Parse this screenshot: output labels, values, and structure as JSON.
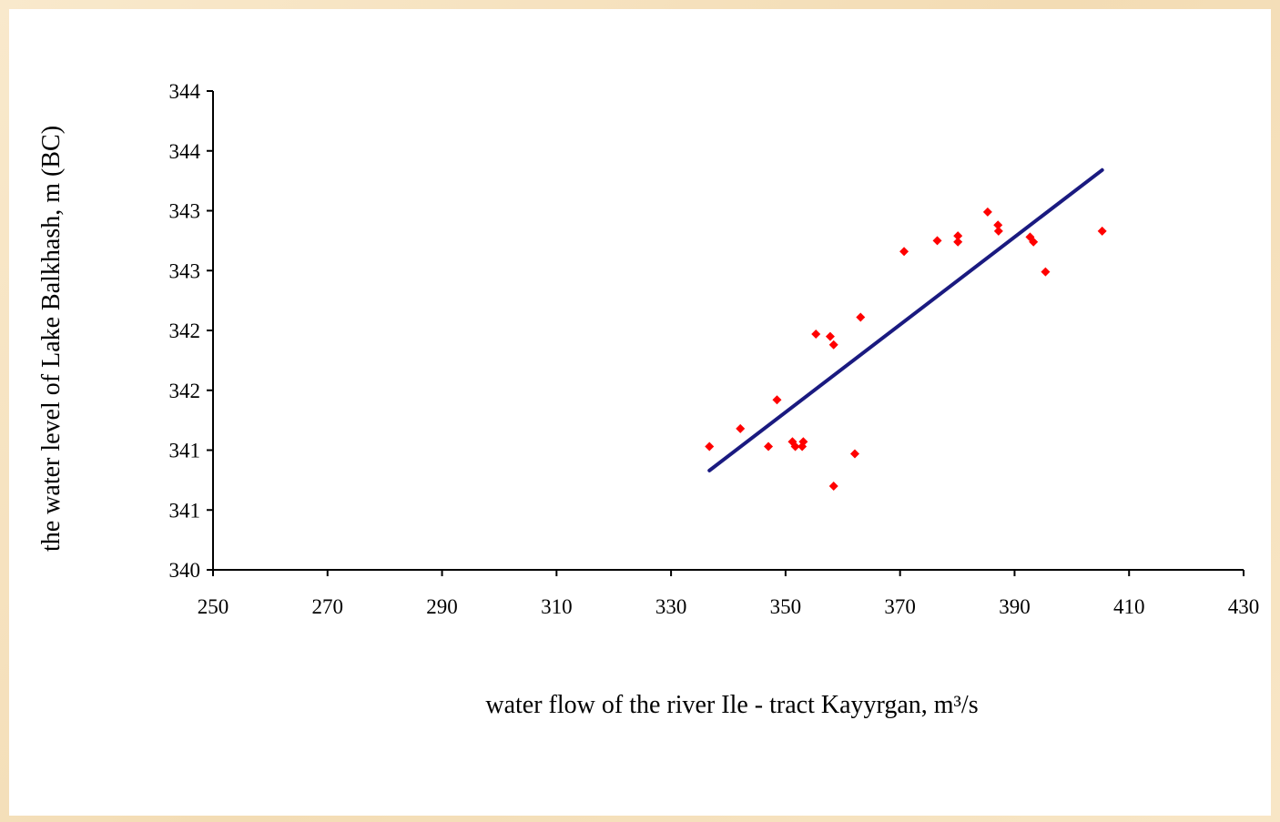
{
  "chart_data": {
    "type": "scatter",
    "title": "",
    "xlabel": "water flow of the river Ile - tract Kayyrgan, m³/s",
    "ylabel": "the water level of Lake Balkhash, m (BC)",
    "xlim": [
      250,
      430
    ],
    "ylim": [
      340,
      344
    ],
    "x_ticks": [
      250,
      270,
      290,
      310,
      330,
      350,
      370,
      390,
      410,
      430
    ],
    "y_ticks": [
      {
        "value": 340.0,
        "label": "340"
      },
      {
        "value": 340.5,
        "label": "341"
      },
      {
        "value": 341.0,
        "label": "341"
      },
      {
        "value": 341.5,
        "label": "342"
      },
      {
        "value": 342.0,
        "label": "342"
      },
      {
        "value": 342.5,
        "label": "343"
      },
      {
        "value": 343.0,
        "label": "343"
      },
      {
        "value": 343.5,
        "label": "344"
      },
      {
        "value": 344.0,
        "label": "344"
      }
    ],
    "grid": false,
    "series": [
      {
        "marker": "diamond",
        "color": "#ff0000",
        "points": [
          [
            336.7,
            341.03
          ],
          [
            342.1,
            341.18
          ],
          [
            347.0,
            341.03
          ],
          [
            348.5,
            341.42
          ],
          [
            351.2,
            341.07
          ],
          [
            351.7,
            341.03
          ],
          [
            352.9,
            341.03
          ],
          [
            353.1,
            341.07
          ],
          [
            355.3,
            341.97
          ],
          [
            357.8,
            341.95
          ],
          [
            358.4,
            341.88
          ],
          [
            358.4,
            340.7
          ],
          [
            362.1,
            340.97
          ],
          [
            363.1,
            342.11
          ],
          [
            370.7,
            342.66
          ],
          [
            376.5,
            342.75
          ],
          [
            380.1,
            342.79
          ],
          [
            380.1,
            342.74
          ],
          [
            385.3,
            342.99
          ],
          [
            387.1,
            342.88
          ],
          [
            387.2,
            342.83
          ],
          [
            392.7,
            342.78
          ],
          [
            393.3,
            342.74
          ],
          [
            395.4,
            342.49
          ],
          [
            405.3,
            342.83
          ]
        ]
      },
      {
        "type": "line",
        "color": "#1a1a80",
        "points": [
          [
            336.7,
            340.83
          ],
          [
            405.3,
            343.34
          ]
        ]
      }
    ]
  }
}
